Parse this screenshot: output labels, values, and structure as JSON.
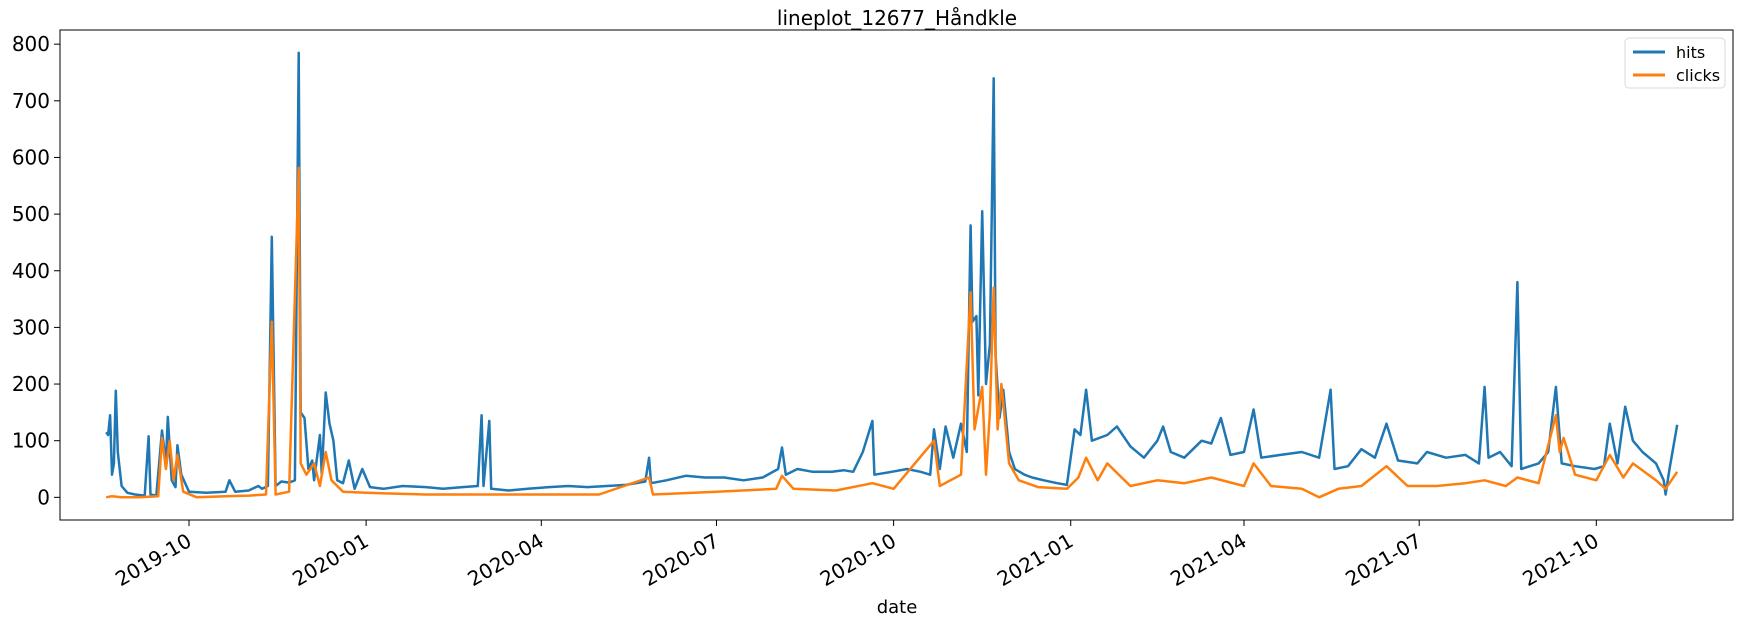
{
  "chart_data": {
    "type": "line",
    "title": "lineplot_12677_Håndkle",
    "xlabel": "date",
    "ylabel": "",
    "xlim": [
      "2019-07-26",
      "2021-12-11"
    ],
    "ylim": [
      -40,
      825
    ],
    "xticks": [
      "2019-10-01",
      "2020-01-01",
      "2020-04-01",
      "2020-07-01",
      "2020-10-01",
      "2021-01-01",
      "2021-04-01",
      "2021-07-01",
      "2021-10-01"
    ],
    "xtick_labels": [
      "2019-10",
      "2020-01",
      "2020-04",
      "2020-07",
      "2020-10",
      "2021-01",
      "2021-04",
      "2021-07",
      "2021-10"
    ],
    "yticks": [
      0,
      100,
      200,
      300,
      400,
      500,
      600,
      700,
      800
    ],
    "legend_position": "top-right",
    "grid": false,
    "series": [
      {
        "name": "hits",
        "color": "#1f77b4",
        "points": [
          [
            "2019-08-19",
            115
          ],
          [
            "2019-08-20",
            110
          ],
          [
            "2019-08-21",
            145
          ],
          [
            "2019-08-22",
            40
          ],
          [
            "2019-08-23",
            60
          ],
          [
            "2019-08-24",
            188
          ],
          [
            "2019-08-25",
            80
          ],
          [
            "2019-08-27",
            20
          ],
          [
            "2019-08-30",
            8
          ],
          [
            "2019-09-03",
            5
          ],
          [
            "2019-09-08",
            3
          ],
          [
            "2019-09-10",
            108
          ],
          [
            "2019-09-11",
            5
          ],
          [
            "2019-09-14",
            3
          ],
          [
            "2019-09-17",
            118
          ],
          [
            "2019-09-19",
            60
          ],
          [
            "2019-09-20",
            142
          ],
          [
            "2019-09-22",
            30
          ],
          [
            "2019-09-24",
            18
          ],
          [
            "2019-09-25",
            92
          ],
          [
            "2019-09-27",
            40
          ],
          [
            "2019-10-01",
            10
          ],
          [
            "2019-10-10",
            8
          ],
          [
            "2019-10-20",
            10
          ],
          [
            "2019-10-22",
            30
          ],
          [
            "2019-10-25",
            10
          ],
          [
            "2019-11-01",
            12
          ],
          [
            "2019-11-06",
            20
          ],
          [
            "2019-11-08",
            15
          ],
          [
            "2019-11-11",
            20
          ],
          [
            "2019-11-13",
            460
          ],
          [
            "2019-11-15",
            20
          ],
          [
            "2019-11-18",
            28
          ],
          [
            "2019-11-22",
            26
          ],
          [
            "2019-11-25",
            30
          ],
          [
            "2019-11-27",
            785
          ],
          [
            "2019-11-28",
            150
          ],
          [
            "2019-11-30",
            140
          ],
          [
            "2019-12-02",
            50
          ],
          [
            "2019-12-04",
            65
          ],
          [
            "2019-12-05",
            30
          ],
          [
            "2019-12-08",
            110
          ],
          [
            "2019-12-09",
            40
          ],
          [
            "2019-12-11",
            185
          ],
          [
            "2019-12-13",
            130
          ],
          [
            "2019-12-15",
            100
          ],
          [
            "2019-12-17",
            30
          ],
          [
            "2019-12-20",
            25
          ],
          [
            "2019-12-23",
            65
          ],
          [
            "2019-12-26",
            15
          ],
          [
            "2019-12-30",
            50
          ],
          [
            "2020-01-03",
            18
          ],
          [
            "2020-01-10",
            15
          ],
          [
            "2020-01-20",
            20
          ],
          [
            "2020-02-01",
            18
          ],
          [
            "2020-02-10",
            15
          ],
          [
            "2020-02-20",
            18
          ],
          [
            "2020-02-28",
            20
          ],
          [
            "2020-03-01",
            145
          ],
          [
            "2020-03-02",
            20
          ],
          [
            "2020-03-05",
            135
          ],
          [
            "2020-03-06",
            15
          ],
          [
            "2020-03-15",
            12
          ],
          [
            "2020-03-25",
            15
          ],
          [
            "2020-04-05",
            18
          ],
          [
            "2020-04-15",
            20
          ],
          [
            "2020-04-25",
            18
          ],
          [
            "2020-05-05",
            20
          ],
          [
            "2020-05-15",
            22
          ],
          [
            "2020-05-25",
            28
          ],
          [
            "2020-05-27",
            70
          ],
          [
            "2020-05-28",
            25
          ],
          [
            "2020-06-05",
            30
          ],
          [
            "2020-06-15",
            38
          ],
          [
            "2020-06-25",
            35
          ],
          [
            "2020-07-05",
            35
          ],
          [
            "2020-07-15",
            30
          ],
          [
            "2020-07-25",
            35
          ],
          [
            "2020-08-02",
            50
          ],
          [
            "2020-08-04",
            88
          ],
          [
            "2020-08-06",
            40
          ],
          [
            "2020-08-12",
            50
          ],
          [
            "2020-08-20",
            45
          ],
          [
            "2020-08-30",
            45
          ],
          [
            "2020-09-05",
            48
          ],
          [
            "2020-09-10",
            45
          ],
          [
            "2020-09-15",
            80
          ],
          [
            "2020-09-20",
            135
          ],
          [
            "2020-09-21",
            40
          ],
          [
            "2020-09-30",
            45
          ],
          [
            "2020-10-08",
            50
          ],
          [
            "2020-10-15",
            45
          ],
          [
            "2020-10-20",
            40
          ],
          [
            "2020-10-22",
            120
          ],
          [
            "2020-10-25",
            50
          ],
          [
            "2020-10-28",
            125
          ],
          [
            "2020-11-01",
            70
          ],
          [
            "2020-11-05",
            130
          ],
          [
            "2020-11-08",
            80
          ],
          [
            "2020-11-10",
            480
          ],
          [
            "2020-11-11",
            310
          ],
          [
            "2020-11-13",
            320
          ],
          [
            "2020-11-14",
            180
          ],
          [
            "2020-11-16",
            505
          ],
          [
            "2020-11-18",
            200
          ],
          [
            "2020-11-20",
            270
          ],
          [
            "2020-11-22",
            740
          ],
          [
            "2020-11-23",
            250
          ],
          [
            "2020-11-25",
            140
          ],
          [
            "2020-11-27",
            190
          ],
          [
            "2020-11-30",
            80
          ],
          [
            "2020-12-03",
            50
          ],
          [
            "2020-12-08",
            40
          ],
          [
            "2020-12-12",
            35
          ],
          [
            "2020-12-18",
            30
          ],
          [
            "2020-12-25",
            25
          ],
          [
            "2020-12-30",
            22
          ],
          [
            "2021-01-03",
            120
          ],
          [
            "2021-01-06",
            110
          ],
          [
            "2021-01-09",
            190
          ],
          [
            "2021-01-12",
            100
          ],
          [
            "2021-01-20",
            110
          ],
          [
            "2021-01-25",
            125
          ],
          [
            "2021-02-01",
            90
          ],
          [
            "2021-02-08",
            70
          ],
          [
            "2021-02-15",
            100
          ],
          [
            "2021-02-18",
            125
          ],
          [
            "2021-02-22",
            80
          ],
          [
            "2021-03-01",
            70
          ],
          [
            "2021-03-10",
            100
          ],
          [
            "2021-03-15",
            95
          ],
          [
            "2021-03-20",
            140
          ],
          [
            "2021-03-25",
            75
          ],
          [
            "2021-04-01",
            80
          ],
          [
            "2021-04-06",
            155
          ],
          [
            "2021-04-10",
            70
          ],
          [
            "2021-04-20",
            75
          ],
          [
            "2021-05-01",
            80
          ],
          [
            "2021-05-10",
            70
          ],
          [
            "2021-05-16",
            190
          ],
          [
            "2021-05-18",
            50
          ],
          [
            "2021-05-25",
            55
          ],
          [
            "2021-06-01",
            85
          ],
          [
            "2021-06-08",
            70
          ],
          [
            "2021-06-14",
            130
          ],
          [
            "2021-06-20",
            65
          ],
          [
            "2021-06-30",
            60
          ],
          [
            "2021-07-05",
            80
          ],
          [
            "2021-07-15",
            70
          ],
          [
            "2021-07-25",
            75
          ],
          [
            "2021-08-01",
            60
          ],
          [
            "2021-08-04",
            195
          ],
          [
            "2021-08-06",
            70
          ],
          [
            "2021-08-12",
            80
          ],
          [
            "2021-08-18",
            55
          ],
          [
            "2021-08-21",
            380
          ],
          [
            "2021-08-23",
            50
          ],
          [
            "2021-09-01",
            60
          ],
          [
            "2021-09-06",
            80
          ],
          [
            "2021-09-10",
            195
          ],
          [
            "2021-09-13",
            60
          ],
          [
            "2021-09-20",
            55
          ],
          [
            "2021-09-30",
            50
          ],
          [
            "2021-10-05",
            55
          ],
          [
            "2021-10-08",
            130
          ],
          [
            "2021-10-12",
            60
          ],
          [
            "2021-10-16",
            160
          ],
          [
            "2021-10-20",
            100
          ],
          [
            "2021-10-25",
            80
          ],
          [
            "2021-11-01",
            60
          ],
          [
            "2021-11-05",
            30
          ],
          [
            "2021-11-06",
            5
          ],
          [
            "2021-11-08",
            50
          ],
          [
            "2021-11-12",
            128
          ]
        ]
      },
      {
        "name": "clicks",
        "color": "#ff7f0e",
        "points": [
          [
            "2019-08-19",
            0
          ],
          [
            "2019-08-22",
            2
          ],
          [
            "2019-08-27",
            0
          ],
          [
            "2019-09-05",
            0
          ],
          [
            "2019-09-15",
            2
          ],
          [
            "2019-09-17",
            105
          ],
          [
            "2019-09-19",
            50
          ],
          [
            "2019-09-21",
            100
          ],
          [
            "2019-09-23",
            30
          ],
          [
            "2019-09-25",
            75
          ],
          [
            "2019-09-28",
            10
          ],
          [
            "2019-10-05",
            0
          ],
          [
            "2019-10-20",
            2
          ],
          [
            "2019-11-01",
            3
          ],
          [
            "2019-11-10",
            5
          ],
          [
            "2019-11-13",
            310
          ],
          [
            "2019-11-15",
            5
          ],
          [
            "2019-11-22",
            10
          ],
          [
            "2019-11-27",
            582
          ],
          [
            "2019-11-28",
            60
          ],
          [
            "2019-12-01",
            40
          ],
          [
            "2019-12-05",
            60
          ],
          [
            "2019-12-08",
            20
          ],
          [
            "2019-12-11",
            80
          ],
          [
            "2019-12-14",
            30
          ],
          [
            "2019-12-20",
            10
          ],
          [
            "2020-01-01",
            8
          ],
          [
            "2020-02-01",
            5
          ],
          [
            "2020-03-01",
            5
          ],
          [
            "2020-04-01",
            5
          ],
          [
            "2020-05-01",
            5
          ],
          [
            "2020-05-27",
            35
          ],
          [
            "2020-05-29",
            5
          ],
          [
            "2020-07-01",
            10
          ],
          [
            "2020-08-01",
            15
          ],
          [
            "2020-08-04",
            38
          ],
          [
            "2020-08-10",
            15
          ],
          [
            "2020-09-01",
            12
          ],
          [
            "2020-09-20",
            25
          ],
          [
            "2020-10-01",
            15
          ],
          [
            "2020-10-22",
            100
          ],
          [
            "2020-10-25",
            20
          ],
          [
            "2020-11-05",
            40
          ],
          [
            "2020-11-10",
            362
          ],
          [
            "2020-11-12",
            120
          ],
          [
            "2020-11-16",
            195
          ],
          [
            "2020-11-18",
            40
          ],
          [
            "2020-11-20",
            150
          ],
          [
            "2020-11-22",
            370
          ],
          [
            "2020-11-24",
            120
          ],
          [
            "2020-11-26",
            200
          ],
          [
            "2020-11-30",
            60
          ],
          [
            "2020-12-05",
            30
          ],
          [
            "2020-12-15",
            18
          ],
          [
            "2020-12-30",
            15
          ],
          [
            "2021-01-05",
            35
          ],
          [
            "2021-01-09",
            70
          ],
          [
            "2021-01-15",
            30
          ],
          [
            "2021-01-20",
            60
          ],
          [
            "2021-02-01",
            20
          ],
          [
            "2021-02-15",
            30
          ],
          [
            "2021-03-01",
            25
          ],
          [
            "2021-03-15",
            35
          ],
          [
            "2021-04-01",
            20
          ],
          [
            "2021-04-06",
            60
          ],
          [
            "2021-04-15",
            20
          ],
          [
            "2021-05-01",
            15
          ],
          [
            "2021-05-10",
            0
          ],
          [
            "2021-05-20",
            15
          ],
          [
            "2021-06-01",
            20
          ],
          [
            "2021-06-14",
            55
          ],
          [
            "2021-06-25",
            20
          ],
          [
            "2021-07-10",
            20
          ],
          [
            "2021-07-25",
            25
          ],
          [
            "2021-08-04",
            30
          ],
          [
            "2021-08-15",
            20
          ],
          [
            "2021-08-21",
            35
          ],
          [
            "2021-09-01",
            25
          ],
          [
            "2021-09-10",
            145
          ],
          [
            "2021-09-12",
            80
          ],
          [
            "2021-09-14",
            105
          ],
          [
            "2021-09-20",
            40
          ],
          [
            "2021-10-01",
            30
          ],
          [
            "2021-10-08",
            75
          ],
          [
            "2021-10-15",
            35
          ],
          [
            "2021-10-20",
            60
          ],
          [
            "2021-11-01",
            30
          ],
          [
            "2021-11-06",
            15
          ],
          [
            "2021-11-12",
            45
          ]
        ]
      }
    ]
  }
}
